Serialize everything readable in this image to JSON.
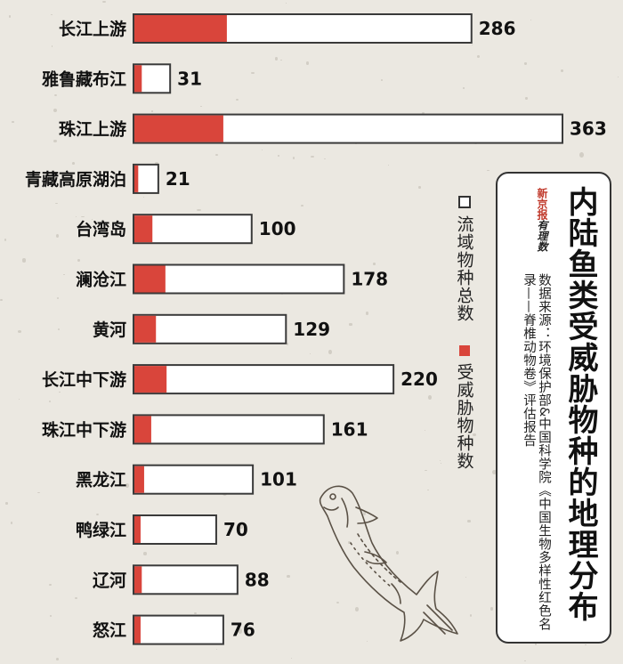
{
  "title": "内陆鱼类受威胁物种的地理分布",
  "source": "数据来源：环境保护部&中国科学院《中国生物多样性红色名录——脊椎动物卷》评估报告",
  "logo": {
    "brand": "新京报",
    "tag": "有理数"
  },
  "legend": {
    "total": "流域物种总数",
    "threatened": "受威胁物种数"
  },
  "colors": {
    "threatened": "#d9453b",
    "total": "#ffffff",
    "outline": "#3a3a3a",
    "background": "#ebe8e1"
  },
  "chart_data": {
    "type": "bar",
    "orientation": "horizontal",
    "categories": [
      "长江上游",
      "雅鲁藏布江",
      "珠江上游",
      "青藏高原湖泊",
      "台湾岛",
      "澜沧江",
      "黄河",
      "长江中下游",
      "珠江中下游",
      "黑龙江",
      "鸭绿江",
      "辽河",
      "怒江"
    ],
    "series": [
      {
        "name": "流域物种总数",
        "values": [
          286,
          31,
          363,
          21,
          100,
          178,
          129,
          220,
          161,
          101,
          70,
          88,
          76
        ]
      },
      {
        "name": "受威胁物种数",
        "values": [
          79,
          7,
          76,
          4,
          16,
          27,
          19,
          28,
          15,
          9,
          6,
          7,
          6
        ]
      }
    ],
    "xlim": [
      0,
      363
    ],
    "grid": false,
    "legend_position": "right"
  }
}
